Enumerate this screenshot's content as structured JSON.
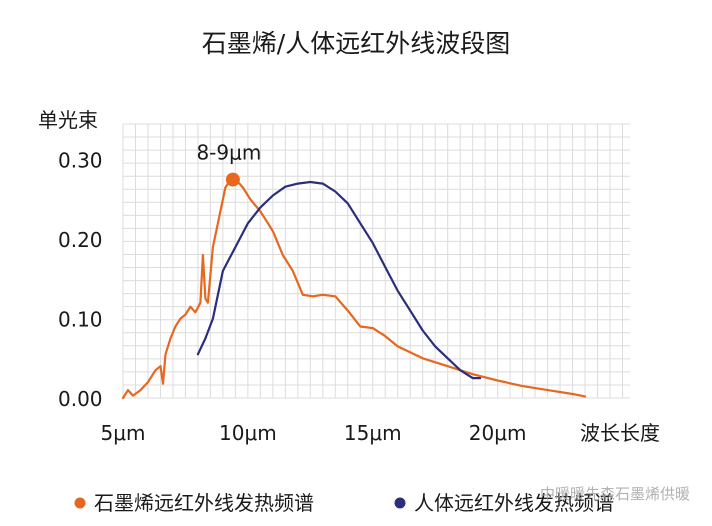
{
  "chart_data": {
    "type": "line",
    "title": "石墨烯/人体远红外线波段图",
    "ylabel": "单光束",
    "xlabel": "波长长度",
    "x_ticks": [
      "5μm",
      "10μm",
      "15μm",
      "20μm"
    ],
    "x_tick_values": [
      5,
      10,
      15,
      20
    ],
    "y_ticks": [
      "0.00",
      "0.10",
      "0.20",
      "0.30"
    ],
    "y_tick_values": [
      0.0,
      0.1,
      0.2,
      0.3
    ],
    "xlim": [
      5,
      25.3
    ],
    "ylim": [
      0,
      0.345
    ],
    "grid": true,
    "legend_position": "bottom",
    "annotation": {
      "text": "8-9μm",
      "x": 9.4,
      "y": 0.275,
      "series": 0
    },
    "series": [
      {
        "name": "石墨烯远红外线发热频谱",
        "color": "#e8671f",
        "points": [
          [
            5.0,
            0.0
          ],
          [
            5.2,
            0.01
          ],
          [
            5.4,
            0.003
          ],
          [
            5.7,
            0.01
          ],
          [
            6.0,
            0.02
          ],
          [
            6.3,
            0.035
          ],
          [
            6.5,
            0.04
          ],
          [
            6.6,
            0.018
          ],
          [
            6.7,
            0.055
          ],
          [
            6.9,
            0.075
          ],
          [
            7.1,
            0.09
          ],
          [
            7.3,
            0.1
          ],
          [
            7.5,
            0.105
          ],
          [
            7.7,
            0.115
          ],
          [
            7.9,
            0.108
          ],
          [
            8.1,
            0.12
          ],
          [
            8.2,
            0.18
          ],
          [
            8.3,
            0.125
          ],
          [
            8.4,
            0.12
          ],
          [
            8.6,
            0.19
          ],
          [
            8.8,
            0.22
          ],
          [
            9.0,
            0.25
          ],
          [
            9.1,
            0.265
          ],
          [
            9.2,
            0.27
          ],
          [
            9.4,
            0.275
          ],
          [
            9.6,
            0.272
          ],
          [
            9.8,
            0.265
          ],
          [
            10.1,
            0.25
          ],
          [
            10.5,
            0.235
          ],
          [
            11.0,
            0.21
          ],
          [
            11.4,
            0.18
          ],
          [
            11.8,
            0.16
          ],
          [
            12.2,
            0.13
          ],
          [
            12.6,
            0.128
          ],
          [
            13.0,
            0.13
          ],
          [
            13.5,
            0.128
          ],
          [
            14.0,
            0.11
          ],
          [
            14.5,
            0.09
          ],
          [
            15.0,
            0.088
          ],
          [
            15.5,
            0.078
          ],
          [
            16.0,
            0.065
          ],
          [
            17.0,
            0.05
          ],
          [
            18.0,
            0.04
          ],
          [
            19.0,
            0.03
          ],
          [
            20.0,
            0.022
          ],
          [
            21.0,
            0.015
          ],
          [
            22.0,
            0.01
          ],
          [
            23.0,
            0.005
          ],
          [
            23.5,
            0.002
          ]
        ]
      },
      {
        "name": "人体远红外线发热频谱",
        "color": "#2b2d7d",
        "points": [
          [
            8.0,
            0.055
          ],
          [
            8.3,
            0.075
          ],
          [
            8.6,
            0.1
          ],
          [
            9.0,
            0.16
          ],
          [
            9.5,
            0.19
          ],
          [
            10.0,
            0.22
          ],
          [
            10.5,
            0.24
          ],
          [
            11.0,
            0.255
          ],
          [
            11.5,
            0.266
          ],
          [
            12.0,
            0.27
          ],
          [
            12.5,
            0.272
          ],
          [
            13.0,
            0.27
          ],
          [
            13.5,
            0.26
          ],
          [
            14.0,
            0.245
          ],
          [
            14.5,
            0.22
          ],
          [
            15.0,
            0.195
          ],
          [
            15.5,
            0.165
          ],
          [
            16.0,
            0.135
          ],
          [
            16.5,
            0.11
          ],
          [
            17.0,
            0.085
          ],
          [
            17.5,
            0.065
          ],
          [
            18.0,
            0.05
          ],
          [
            18.5,
            0.035
          ],
          [
            19.0,
            0.025
          ],
          [
            19.3,
            0.025
          ]
        ]
      }
    ]
  },
  "watermark": "中暖暖先森石墨烯供暖"
}
